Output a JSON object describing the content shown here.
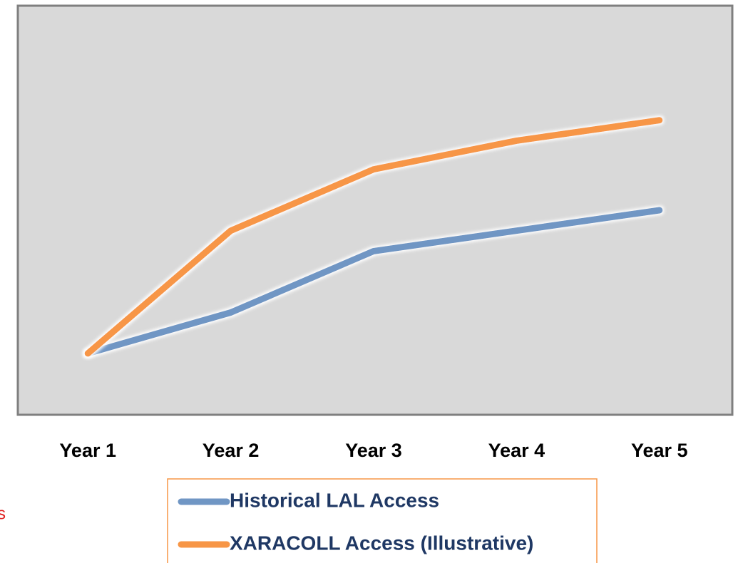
{
  "chart_data": {
    "type": "line",
    "categories": [
      "Year 1",
      "Year 2",
      "Year 3",
      "Year 4",
      "Year 5"
    ],
    "series": [
      {
        "name": "Historical LAL Access",
        "color": "#7096c4",
        "values": [
          15,
          25,
          40,
          45,
          50
        ]
      },
      {
        "name": "XARACOLL Access (Illustrative)",
        "color": "#f79646",
        "values": [
          15,
          45,
          60,
          67,
          72
        ]
      }
    ],
    "ylim": [
      0,
      100
    ],
    "plot_background": "#d9d9d9",
    "annotation": "s"
  }
}
